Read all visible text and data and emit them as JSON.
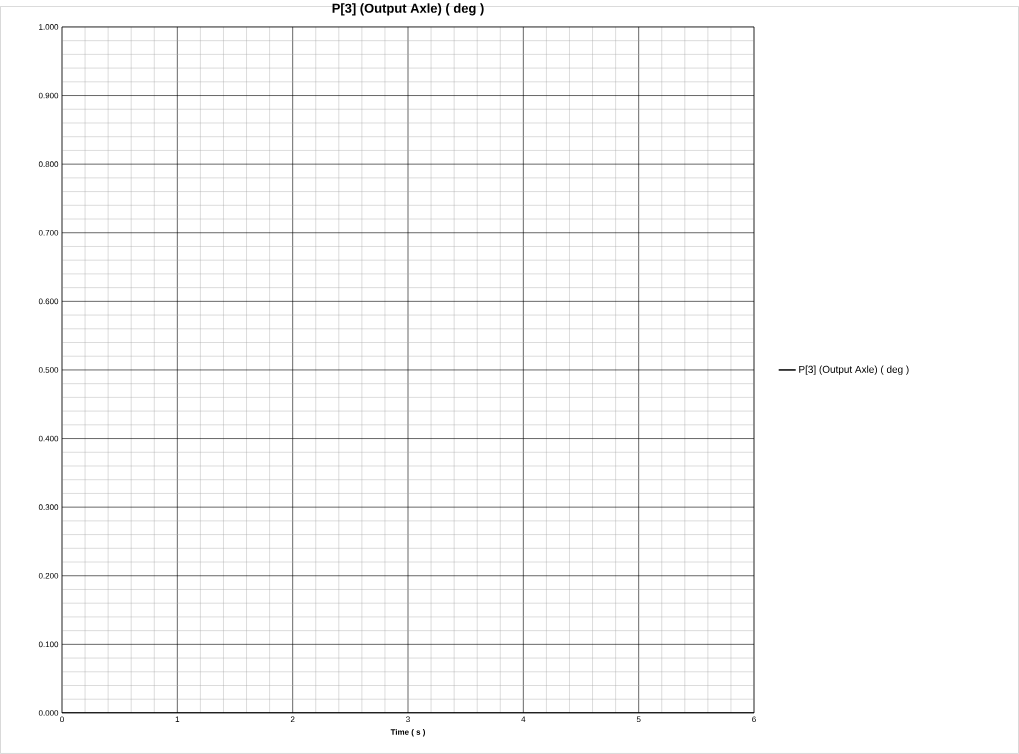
{
  "chart_data": {
    "type": "line",
    "title": "P[3] (Output Axle) ( deg )",
    "xlabel": "Time ( s )",
    "series": [
      {
        "name": "P[3] (Output Axle) ( deg )",
        "color": "#000000",
        "x": [
          0,
          6
        ],
        "values": [
          0,
          0
        ]
      }
    ],
    "xlim": [
      0,
      6
    ],
    "xticks": [
      0,
      1,
      2,
      3,
      4,
      5,
      6
    ],
    "ylim": [
      0,
      1
    ],
    "yticks": [
      {
        "value": 0,
        "label": "0.000"
      },
      {
        "value": 0.1,
        "label": "0.100"
      },
      {
        "value": 0.2,
        "label": "0.200"
      },
      {
        "value": 0.3,
        "label": "0.300"
      },
      {
        "value": 0.4,
        "label": "0.400"
      },
      {
        "value": 0.5,
        "label": "0.500"
      },
      {
        "value": 0.6,
        "label": "0.600"
      },
      {
        "value": 0.7,
        "label": "0.700"
      },
      {
        "value": 0.8,
        "label": "0.800"
      },
      {
        "value": 0.9,
        "label": "0.900"
      },
      {
        "value": 1,
        "label": "1.000"
      }
    ],
    "grid": true,
    "legend": "right",
    "marker": "none",
    "line_style": "solid"
  }
}
